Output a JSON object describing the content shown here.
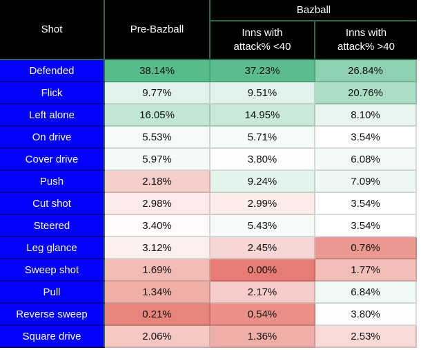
{
  "page": {
    "background": "#FFFFFF"
  },
  "table": {
    "header": {
      "shot_label": "Shot",
      "pre_bazball_label": "Pre-Bazball",
      "bazball_group_label": "Bazball",
      "sub_low_line1": "Inns with",
      "sub_low_line2": "attack% <40",
      "sub_high_line1": "Inns with",
      "sub_high_line2": "attack% >40"
    },
    "colors": {
      "header_bg": "#000000",
      "header_text": "#FFFFFF",
      "header_border": "#2F6A4A",
      "shot_col_bg": "#0101FC",
      "shot_col_text": "#FFFFFF",
      "value_text": "#111111"
    }
  },
  "chart_data": {
    "type": "heatmap",
    "title": "",
    "columns": [
      "Shot",
      "Pre-Bazball",
      "Inns with attack% <40",
      "Inns with attack% >40"
    ],
    "column_group": {
      "label": "Bazball",
      "spans": [
        "Inns with attack% <40",
        "Inns with attack% >40"
      ]
    },
    "unit": "%",
    "value_decimals": 2,
    "rows": [
      {
        "shot": "Defended",
        "values": [
          38.14,
          37.23,
          26.84
        ]
      },
      {
        "shot": "Flick",
        "values": [
          9.77,
          9.51,
          20.76
        ]
      },
      {
        "shot": "Left alone",
        "values": [
          16.05,
          14.95,
          8.1
        ]
      },
      {
        "shot": "On drive",
        "values": [
          5.53,
          5.71,
          3.54
        ]
      },
      {
        "shot": "Cover drive",
        "values": [
          5.97,
          3.8,
          6.08
        ]
      },
      {
        "shot": "Push",
        "values": [
          2.18,
          9.24,
          7.09
        ]
      },
      {
        "shot": "Cut shot",
        "values": [
          2.98,
          2.99,
          3.54
        ]
      },
      {
        "shot": "Steered",
        "values": [
          3.4,
          5.43,
          3.54
        ]
      },
      {
        "shot": "Leg glance",
        "values": [
          3.12,
          2.45,
          0.76
        ]
      },
      {
        "shot": "Sweep shot",
        "values": [
          1.69,
          0.0,
          1.77
        ]
      },
      {
        "shot": "Pull",
        "values": [
          1.34,
          2.17,
          6.84
        ]
      },
      {
        "shot": "Reverse sweep",
        "values": [
          0.21,
          0.54,
          3.8
        ]
      },
      {
        "shot": "Square drive",
        "values": [
          2.06,
          1.36,
          2.53
        ]
      }
    ],
    "color_scale": {
      "min_value": 0.0,
      "mid_value": 3.54,
      "max_value": 38.14,
      "min_color": "#E67C73",
      "mid_color": "#FFFFFF",
      "max_color": "#57BB8A"
    }
  }
}
